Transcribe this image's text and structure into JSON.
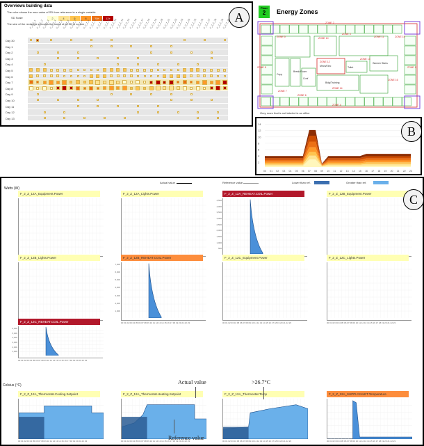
{
  "panels": {
    "a_label": "A",
    "b_label": "B",
    "c_label": "C"
  },
  "heatmap": {
    "title": "Overviews building data",
    "bullet1": "The color shows the max value of SD from reference in a single variable",
    "bullet2": "The size of the rectangle encodes the mean of all SD in a zone",
    "sd_label": "SD Scale",
    "legend": [
      "2",
      "4",
      "6",
      "8",
      "10+",
      "12+"
    ],
    "legend_colors": [
      "#ffffd4",
      "#fee391",
      "#fec44f",
      "#fe9929",
      "#ec7014",
      "#b30000"
    ],
    "rows": [
      "Day 30",
      "Day 1",
      "Day 2",
      "Day 3",
      "Day 4",
      "Day 5",
      "Day 6",
      "Day 7",
      "Day 8",
      "Day 9",
      "Day 10",
      "Day 11",
      "Day 12",
      "Day 13"
    ]
  },
  "floor": {
    "badge_top": "Floor",
    "badge_num": "2",
    "title": "Energy Zones",
    "zone_labels": [
      "ZONE 5",
      "ZONE 8",
      "ZONE 3",
      "ZONE 10",
      "ZONE 11",
      "ZONE 12",
      "ZONE 13",
      "ZONE 14",
      "ZONE 16",
      "ZONE 7",
      "ZONE 6",
      "ZONE 9",
      "ZONE 2",
      "ZONE 4",
      "ZONE 15"
    ],
    "room_labels": [
      "Mech/Elec",
      "Toilet",
      "Women Stairs",
      "Bldg/Training",
      "Break Room",
      "Copy",
      "Conf"
    ],
    "footnote": "Grey room that is not labeled is an office"
  },
  "line_chart": {
    "y_ticks": [
      "14",
      "12",
      "10",
      "8",
      "6",
      "4",
      "2"
    ],
    "x_ticks": [
      "00",
      "01",
      "02",
      "03",
      "04",
      "05",
      "06",
      "07",
      "08",
      "09",
      "10",
      "11",
      "12",
      "13",
      "14",
      "15",
      "16",
      "17",
      "18",
      "19",
      "20",
      "21",
      "22",
      "23"
    ]
  },
  "charts": {
    "legend": {
      "actual": "Actual value",
      "reference": "Reference value",
      "lower": "Lower than ref.",
      "greater": "Greater than ref."
    },
    "watts_label": "Watts (W)",
    "celsius_label": "Celsius (°C)",
    "x_ticks": "00 01 02 03 04 05 06 07 08 09 10 11 12 13 14 15 16 17 18 19 20 21 22 23",
    "power": [
      {
        "title": "F_2_Z_12A_Equipment.Power",
        "color": "#ffffb3",
        "yticks": []
      },
      {
        "title": "F_2_Z_12A_Lights.Power",
        "color": "#ffffb3",
        "yticks": []
      },
      {
        "title": "F_2_Z_12A_REHEAT.COIL.Power",
        "color": "#b2182b",
        "yticks": [
          "4,500",
          "4,000",
          "3,500",
          "3,000",
          "2,500",
          "2,000",
          "1,500",
          "1,000",
          "500"
        ]
      },
      {
        "title": "F_2_Z_12B_Equipment.Power",
        "color": "#ffffb3",
        "yticks": []
      },
      {
        "title": "F_2_Z_12B_Lights.Power",
        "color": "#ffffb3",
        "yticks": []
      },
      {
        "title": "F_2_Z_12B_REHEAT.COIL.Power",
        "color": "#fd8d3c",
        "yticks": [
          "7,000",
          "6,000",
          "5,000",
          "4,000",
          "3,000",
          "2,000",
          "1,000"
        ]
      },
      {
        "title": "F_2_Z_12C_Equipment.Power",
        "color": "#ffffb3",
        "yticks": []
      },
      {
        "title": "F_2_Z_12C_Lights.Power",
        "color": "#ffffb3",
        "yticks": []
      },
      {
        "title": "F_2_Z_12C_REHEAT.COIL.Power",
        "color": "#b2182b",
        "yticks": [
          "6,000",
          "5,000",
          "4,000",
          "3,000",
          "2,000",
          "1,000"
        ]
      }
    ],
    "temp": [
      {
        "title": "F_2_Z_12A_Thermostat.Cooling.Setpoint",
        "color": "#ffffb3"
      },
      {
        "title": "F_2_Z_12A_Thermostat.Heating.Setpoint",
        "color": "#ffffb3"
      },
      {
        "title": "F_2_Z_12A_Thermostat.Temp",
        "color": "#ffffb3"
      },
      {
        "title": "F_2_Z_12A_SUPPLY.INLET.Temperature",
        "color": "#fd8d3c"
      }
    ],
    "annotations": {
      "actual": "Actual value",
      "reference": "Reference value",
      "threshold": ">26.7°C"
    }
  }
}
